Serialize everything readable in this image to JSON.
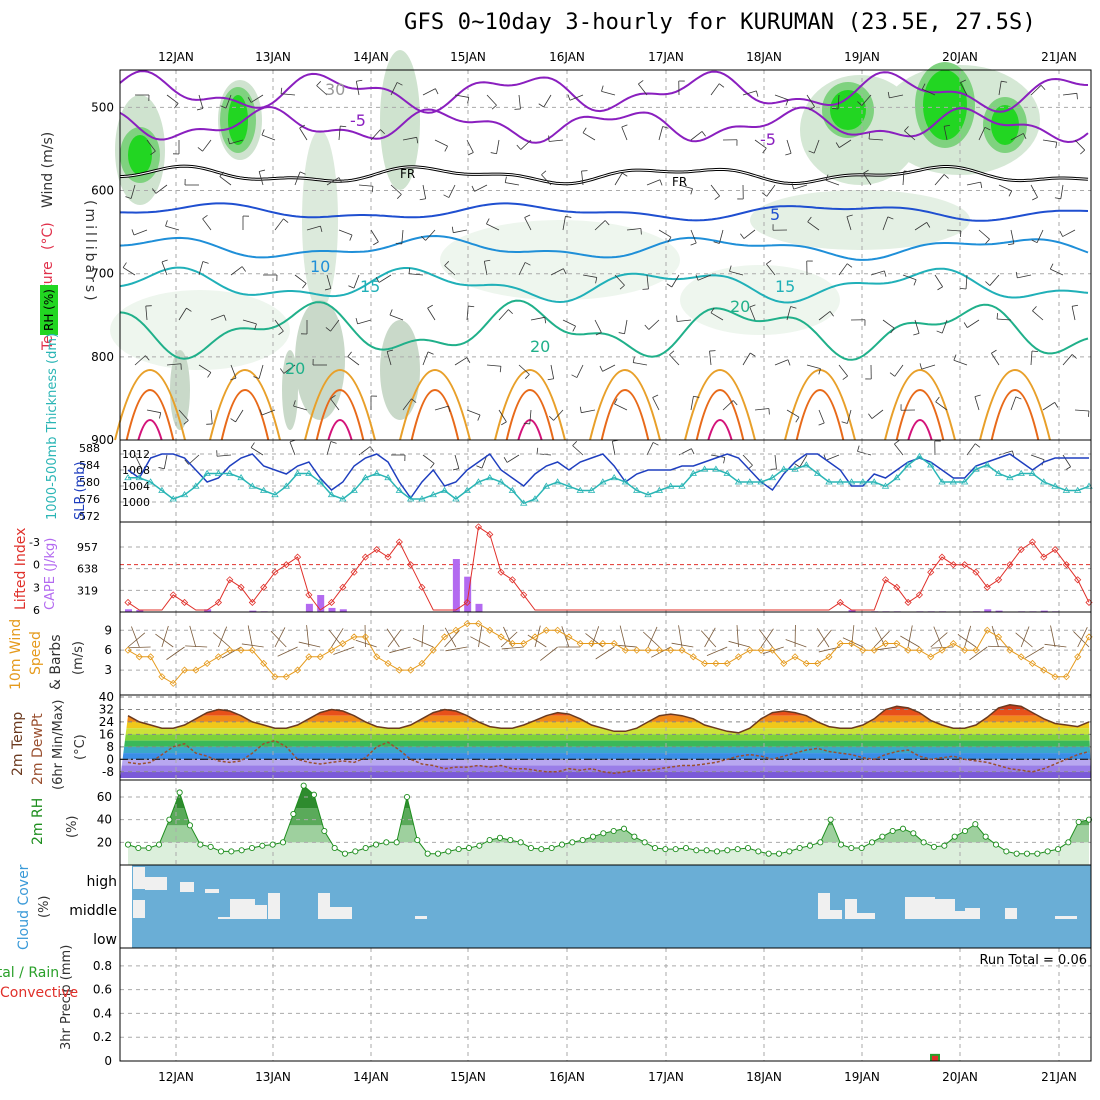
{
  "title": "GFS 0~10day 3-hourly for KURUMAN (23.5E, 27.5S)",
  "x_axis": {
    "dates": [
      "12JAN",
      "13JAN",
      "14JAN",
      "15JAN",
      "16JAN",
      "17JAN",
      "18JAN",
      "19JAN",
      "20JAN",
      "21JAN"
    ]
  },
  "chart_data": [
    {
      "type": "heatmap",
      "id": "upper-air",
      "ylabel_parts": [
        "RH (%)",
        "Temperature",
        "(°C)",
        "Wind (m/s)"
      ],
      "yunit": "(millibars)",
      "y_ticks": [
        500,
        600,
        700,
        800,
        900
      ],
      "ylim": [
        900,
        455
      ],
      "freezing_label": "FR",
      "contour_labels": [
        "-5",
        "-5",
        "5",
        "10",
        "15",
        "15",
        "20",
        "20",
        "20",
        "30"
      ],
      "grid": true
    },
    {
      "type": "line",
      "id": "slp-thickness",
      "ylabel_left": "1000-500mb Thickness (dm)",
      "ylabel_right": "SLP (mb)",
      "left_ticks": [
        572,
        576,
        580,
        584,
        588
      ],
      "right_ticks": [
        1000,
        1004,
        1008,
        1012
      ],
      "series": [
        {
          "name": "SLP (mb)",
          "axis": "right",
          "color": "#1f3fbf",
          "values": [
            1008,
            1006,
            1011,
            1012,
            1012,
            1011,
            1008,
            1005,
            1006,
            1009,
            1011,
            1012,
            1009,
            1008,
            1007,
            1009,
            1010,
            1006,
            1003,
            1005,
            1009,
            1011,
            1012,
            1010,
            1005,
            1001,
            1005,
            1008,
            1004,
            1005,
            1008,
            1010,
            1012,
            1008,
            1006,
            1004,
            1007,
            1009,
            1010,
            1008,
            1010,
            1011,
            1012,
            1009,
            1005,
            1007,
            1008,
            1008,
            1008,
            1009,
            1009,
            1010,
            1011,
            1012,
            1011,
            1008,
            1005,
            1003,
            1007,
            1010,
            1012,
            1012,
            1010,
            1008,
            1004,
            1004,
            1007,
            1006,
            1008,
            1010,
            1011,
            1010,
            1008,
            1006,
            1006,
            1009,
            1010,
            1011,
            1012,
            1010,
            1008,
            1010,
            1011,
            1011,
            1011,
            1011
          ]
        },
        {
          "name": "1000-500mb Thickness (dm)",
          "axis": "left",
          "color": "#2ab5b5",
          "values": [
            581,
            581,
            580,
            578,
            576,
            577,
            579,
            582,
            582,
            582,
            581,
            579,
            578,
            577,
            579,
            582,
            582,
            580,
            577,
            576,
            578,
            581,
            582,
            581,
            578,
            576,
            576,
            577,
            578,
            576,
            578,
            580,
            581,
            580,
            578,
            575,
            576,
            579,
            580,
            579,
            578,
            578,
            580,
            581,
            580,
            578,
            577,
            578,
            579,
            579,
            582,
            583,
            583,
            582,
            580,
            580,
            580,
            581,
            583,
            583,
            584,
            582,
            580,
            580,
            580,
            580,
            580,
            579,
            581,
            584,
            586,
            584,
            580,
            580,
            580,
            583,
            584,
            582,
            581,
            582,
            582,
            580,
            579,
            578,
            578,
            579
          ]
        }
      ],
      "grid": true
    },
    {
      "type": "bar",
      "id": "lifted-index-cape",
      "ylabel_left": "Lifted Index",
      "ylabel_right": "CAPE (J/kg)",
      "left_ticks": [
        "-3",
        "0",
        "3",
        "6"
      ],
      "right_ticks": [
        "957",
        "638",
        "319"
      ],
      "lifted_index": [
        5,
        6,
        6,
        6,
        4,
        5,
        6,
        6,
        5,
        2,
        3,
        5,
        3,
        1,
        0,
        -1,
        4,
        6,
        5,
        3,
        1,
        -1,
        -2,
        -1,
        -3,
        0,
        3,
        6,
        6,
        6,
        5,
        -5,
        -4,
        1,
        2,
        4,
        6,
        6,
        6,
        6,
        6,
        6,
        6,
        6,
        6,
        6,
        6,
        6,
        6,
        6,
        6,
        6,
        6,
        6,
        6,
        6,
        6,
        6,
        6,
        6,
        6,
        6,
        6,
        5,
        6,
        6,
        6,
        2,
        3,
        5,
        4,
        1,
        -1,
        0,
        0,
        1,
        3,
        2,
        0,
        -2,
        -3,
        -1,
        -2,
        0,
        2,
        5
      ],
      "cape": [
        40,
        30,
        0,
        0,
        0,
        0,
        0,
        40,
        0,
        0,
        0,
        20,
        10,
        0,
        0,
        0,
        120,
        250,
        60,
        40,
        0,
        0,
        0,
        0,
        0,
        0,
        0,
        0,
        0,
        780,
        520,
        120,
        0,
        0,
        0,
        0,
        0,
        0,
        0,
        0,
        0,
        0,
        0,
        0,
        0,
        0,
        0,
        0,
        0,
        0,
        0,
        0,
        0,
        0,
        0,
        0,
        0,
        0,
        0,
        0,
        0,
        0,
        0,
        0,
        30,
        0,
        10,
        10,
        10,
        0,
        10,
        10,
        10,
        0,
        0,
        10,
        40,
        20,
        0,
        10,
        10,
        20,
        10,
        0,
        0,
        0
      ],
      "grid": true
    },
    {
      "type": "line",
      "id": "wind-10m",
      "ylabel": "10m Wind Speed (m/s) & Barbs",
      "ylabel_parts": [
        "10m Wind",
        "Speed",
        "& Barbs"
      ],
      "yunit": "(m/s)",
      "y_ticks": [
        3,
        6,
        9
      ],
      "series": [
        {
          "name": "10m Wind Speed",
          "color": "#e59a1c",
          "values": [
            6,
            5,
            5,
            2,
            1,
            3,
            3,
            4,
            5,
            6,
            6,
            6,
            4,
            2,
            2,
            3,
            5,
            5,
            6,
            7,
            8,
            8,
            5,
            4,
            3,
            3,
            4,
            6,
            8,
            9,
            10,
            10,
            9,
            8,
            7,
            7,
            8,
            9,
            9,
            8,
            7,
            7,
            7,
            7,
            6,
            6,
            6,
            6,
            6,
            6,
            5,
            4,
            4,
            4,
            5,
            6,
            6,
            6,
            4,
            5,
            4,
            4,
            5,
            7,
            7,
            6,
            6,
            7,
            7,
            6,
            6,
            5,
            6,
            7,
            6,
            6,
            9,
            8,
            6,
            5,
            4,
            3,
            2,
            2,
            5,
            8
          ]
        }
      ],
      "grid": true
    },
    {
      "type": "line",
      "id": "temp-2m",
      "ylabel_parts": [
        "2m Temp",
        "2m DewPt",
        "(6hr Min/Max)"
      ],
      "yunit": "(°C)",
      "y_ticks": [
        40,
        32,
        24,
        16,
        8,
        0,
        -8
      ],
      "series": [
        {
          "name": "2m Temp",
          "color": "#6b3a1f",
          "values": [
            28,
            24,
            22,
            20,
            20,
            22,
            26,
            30,
            32,
            31,
            28,
            24,
            22,
            20,
            20,
            22,
            26,
            30,
            32,
            31,
            28,
            24,
            21,
            20,
            20,
            22,
            26,
            30,
            32,
            31,
            28,
            24,
            21,
            20,
            20,
            22,
            25,
            28,
            30,
            29,
            26,
            22,
            20,
            18,
            18,
            20,
            24,
            28,
            29,
            28,
            26,
            22,
            20,
            18,
            17,
            20,
            26,
            30,
            31,
            30,
            28,
            24,
            21,
            20,
            20,
            22,
            26,
            32,
            34,
            33,
            30,
            25,
            22,
            20,
            20,
            22,
            27,
            33,
            35,
            34,
            30,
            26,
            23,
            22,
            21,
            24
          ]
        },
        {
          "name": "2m DewPt",
          "color": "#9a5030",
          "values": [
            -2,
            -3,
            -2,
            3,
            8,
            10,
            4,
            2,
            -1,
            -2,
            -1,
            4,
            10,
            12,
            8,
            0,
            -2,
            -3,
            -2,
            -1,
            -2,
            1,
            8,
            11,
            6,
            0,
            -3,
            -4,
            -6,
            -5,
            -5,
            -4,
            -5,
            -4,
            -6,
            -6,
            -7,
            -8,
            -8,
            -6,
            -7,
            -6,
            -8,
            -9,
            -8,
            -7,
            -7,
            -6,
            -5,
            -4,
            -4,
            -3,
            -2,
            0,
            2,
            3,
            2,
            0,
            2,
            4,
            6,
            7,
            5,
            4,
            3,
            1,
            0,
            3,
            5,
            6,
            2,
            0,
            1,
            2,
            0,
            -1,
            -2,
            -4,
            -6,
            -7,
            -8,
            -6,
            -3,
            0,
            3,
            5
          ]
        }
      ],
      "grid": true
    },
    {
      "type": "area",
      "id": "rh-2m",
      "ylabel": "2m RH",
      "yunit": "(%)",
      "y_ticks": [
        20,
        40,
        60
      ],
      "ylim": [
        0,
        75
      ],
      "series": [
        {
          "name": "2m RH",
          "color": "#1e8e1e",
          "values": [
            18,
            15,
            15,
            18,
            40,
            64,
            35,
            18,
            16,
            12,
            12,
            13,
            15,
            17,
            18,
            20,
            45,
            70,
            62,
            30,
            15,
            10,
            12,
            15,
            18,
            20,
            20,
            60,
            22,
            10,
            10,
            12,
            14,
            15,
            17,
            22,
            24,
            22,
            20,
            15,
            14,
            15,
            18,
            20,
            22,
            25,
            28,
            30,
            32,
            25,
            20,
            15,
            14,
            14,
            15,
            13,
            13,
            12,
            13,
            14,
            15,
            12,
            10,
            10,
            12,
            15,
            17,
            20,
            40,
            18,
            15,
            15,
            20,
            25,
            30,
            32,
            28,
            20,
            16,
            17,
            25,
            30,
            36,
            25,
            18,
            12,
            10,
            10,
            10,
            12,
            14,
            20,
            38,
            40
          ]
        }
      ],
      "grid": true
    },
    {
      "type": "heatmap",
      "id": "cloud-cover",
      "ylabel": "Cloud Cover",
      "yunit": "(%)",
      "y_ticks": [
        "high",
        "middle",
        "low"
      ],
      "fill_color": "#6aaed6",
      "note": "white blocks mark cloud fraction per level"
    },
    {
      "type": "bar",
      "id": "precip-3hr",
      "ylabel_parts": [
        "Total / Rain",
        "Convective",
        "3hr Precip (mm)"
      ],
      "y_ticks": [
        "0",
        "0.2",
        "0.4",
        "0.6",
        "0.8"
      ],
      "ylim": [
        0,
        0.95
      ],
      "run_total_label": "Run Total = 0.06",
      "series": [
        {
          "name": "Total / Rain",
          "color": "#2aa02a",
          "values_at": [
            {
              "x": "19JAN 18Z",
              "value": 0.06
            }
          ]
        },
        {
          "name": "Convective",
          "color": "#e0302a",
          "values_at": [
            {
              "x": "19JAN 18Z",
              "value": 0.06
            }
          ]
        }
      ],
      "grid": true
    }
  ]
}
